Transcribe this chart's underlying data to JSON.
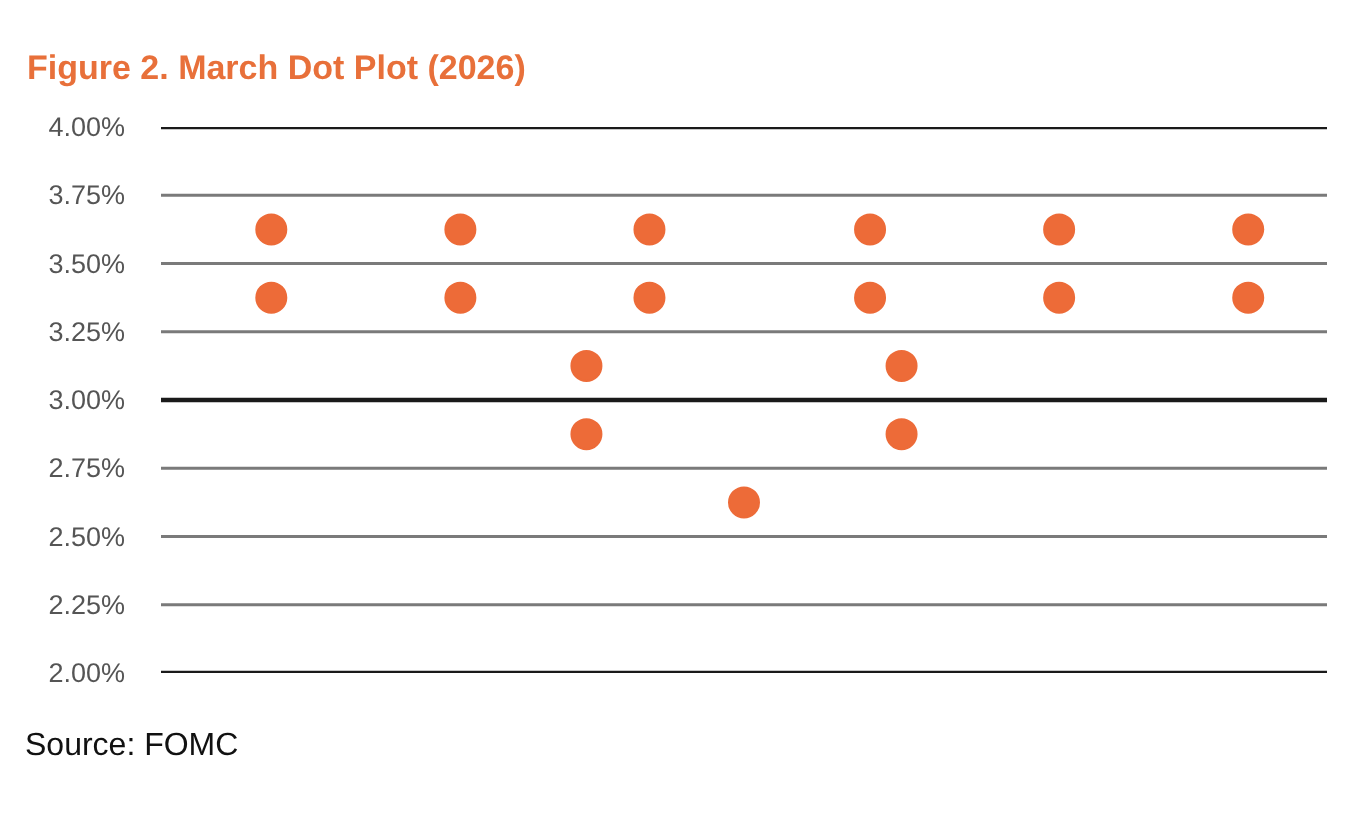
{
  "chart_data": {
    "type": "scatter",
    "title": "Figure 2. March Dot Plot (2026)",
    "annotations": [
      "Source: FOMC"
    ],
    "categories": [
      null,
      null,
      null,
      null,
      null,
      null,
      null,
      null,
      null,
      null,
      null,
      null,
      null,
      null,
      null,
      null,
      null,
      null,
      null,
      null,
      null,
      null,
      null,
      null,
      null,
      null,
      null,
      null,
      null,
      null,
      null,
      null,
      null,
      null,
      null,
      null,
      null
    ],
    "series": [
      {
        "color": "#ed6b38",
        "values": [
          null,
          null,
          null,
          3.625,
          null,
          null,
          null,
          null,
          null,
          3.625,
          null,
          null,
          null,
          3.125,
          null,
          3.625,
          null,
          null,
          2.625,
          null,
          null,
          null,
          3.625,
          3.125,
          null,
          null,
          null,
          null,
          3.625,
          null,
          null,
          null,
          null,
          null,
          3.625,
          null,
          null
        ]
      },
      {
        "color": "#ed6b38",
        "values": [
          null,
          null,
          null,
          3.375,
          null,
          null,
          null,
          null,
          null,
          3.375,
          null,
          null,
          null,
          2.875,
          null,
          3.375,
          null,
          null,
          null,
          null,
          null,
          null,
          3.375,
          2.875,
          null,
          null,
          null,
          null,
          3.375,
          null,
          null,
          null,
          null,
          null,
          3.375,
          null,
          null
        ]
      }
    ],
    "ylim": [
      2.0,
      4.0
    ],
    "yticks": [
      {
        "value": 2.0,
        "label": "2.00%"
      },
      {
        "value": 2.25,
        "label": "2.25%"
      },
      {
        "value": 2.5,
        "label": "2.50%"
      },
      {
        "value": 2.75,
        "label": "2.75%"
      },
      {
        "value": 3.0,
        "label": "3.00%"
      },
      {
        "value": 3.25,
        "label": "3.25%"
      },
      {
        "value": 3.5,
        "label": "3.50%"
      },
      {
        "value": 3.75,
        "label": "3.75%"
      },
      {
        "value": 4.0,
        "label": "4.00%"
      }
    ],
    "ref_lines": [
      {
        "axis": "y",
        "value": 3.0,
        "color": "#1a1a1a"
      }
    ],
    "grid": "y",
    "tick_labels": "y",
    "marker": "circle"
  }
}
